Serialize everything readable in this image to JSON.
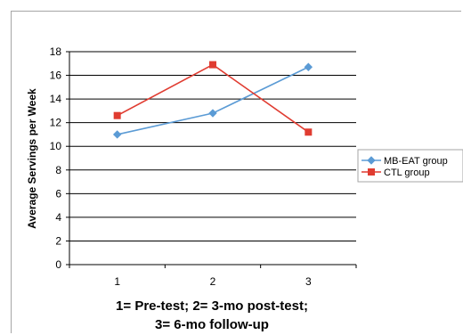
{
  "chart_data": {
    "type": "line",
    "categories": [
      "1",
      "2",
      "3"
    ],
    "series": [
      {
        "name": "MB-EAT group",
        "values": [
          11.0,
          12.8,
          16.7
        ],
        "color": "#5b9bd5",
        "marker": "diamond"
      },
      {
        "name": "CTL group",
        "values": [
          12.6,
          16.9,
          11.2
        ],
        "color": "#e03c31",
        "marker": "square"
      }
    ],
    "title": "",
    "xlabel_lines": [
      "1= Pre-test; 2= 3-mo post-test;",
      "3= 6-mo follow-up"
    ],
    "ylabel": "Average Servings per Week",
    "ylim": [
      0,
      18
    ],
    "yticks": [
      0,
      2,
      4,
      6,
      8,
      10,
      12,
      14,
      16,
      18
    ],
    "grid": true,
    "legend_position": "right"
  }
}
